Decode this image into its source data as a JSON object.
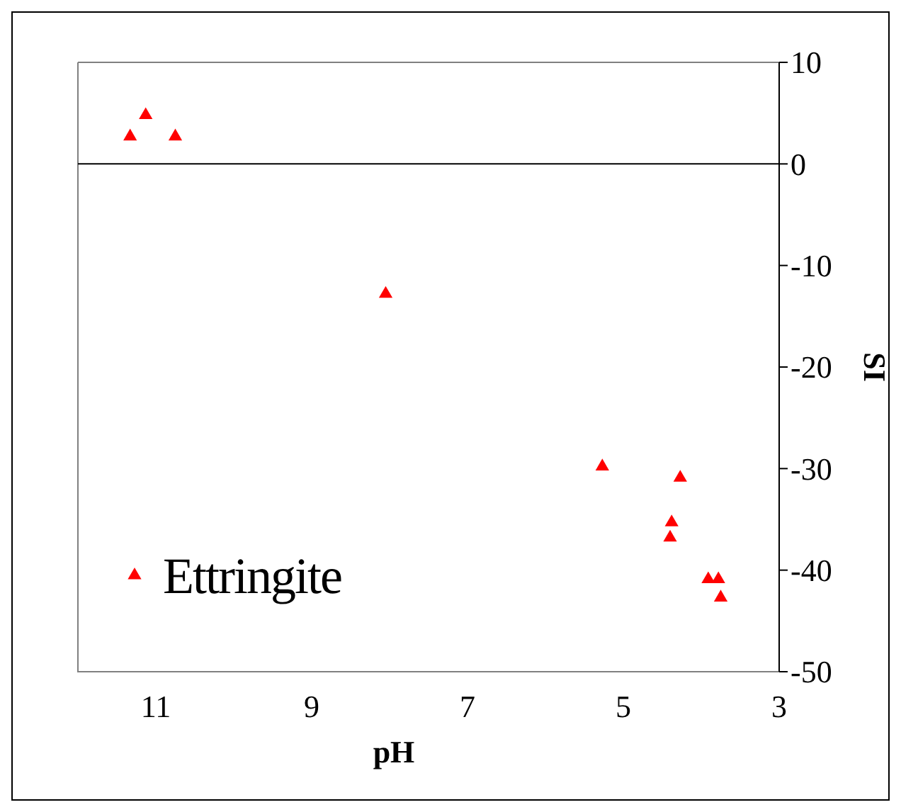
{
  "chart_data": {
    "type": "scatter",
    "xlabel": "pH",
    "ylabel": "SI",
    "series": [
      {
        "name": "Ettringite",
        "color": "#ff0000",
        "x": [
          11.33,
          11.13,
          10.75,
          8.05,
          5.27,
          4.27,
          4.38,
          4.4,
          3.91,
          3.78,
          3.75
        ],
        "values": [
          2.7,
          4.8,
          2.7,
          -12.8,
          -29.8,
          -30.9,
          -35.3,
          -36.8,
          -40.9,
          -40.9,
          -42.7
        ]
      }
    ],
    "xlim": [
      12,
      3
    ],
    "xticks": [
      11,
      9,
      7,
      5,
      3
    ],
    "ylim": [
      -50,
      10
    ],
    "yticks": [
      10,
      0,
      -10,
      -20,
      -30,
      -40,
      -50
    ],
    "ref_lines": [
      {
        "axis": "y",
        "value": 0,
        "color": "#000000"
      }
    ],
    "marker": "triangle",
    "legend": "bottom left",
    "grid": false
  }
}
